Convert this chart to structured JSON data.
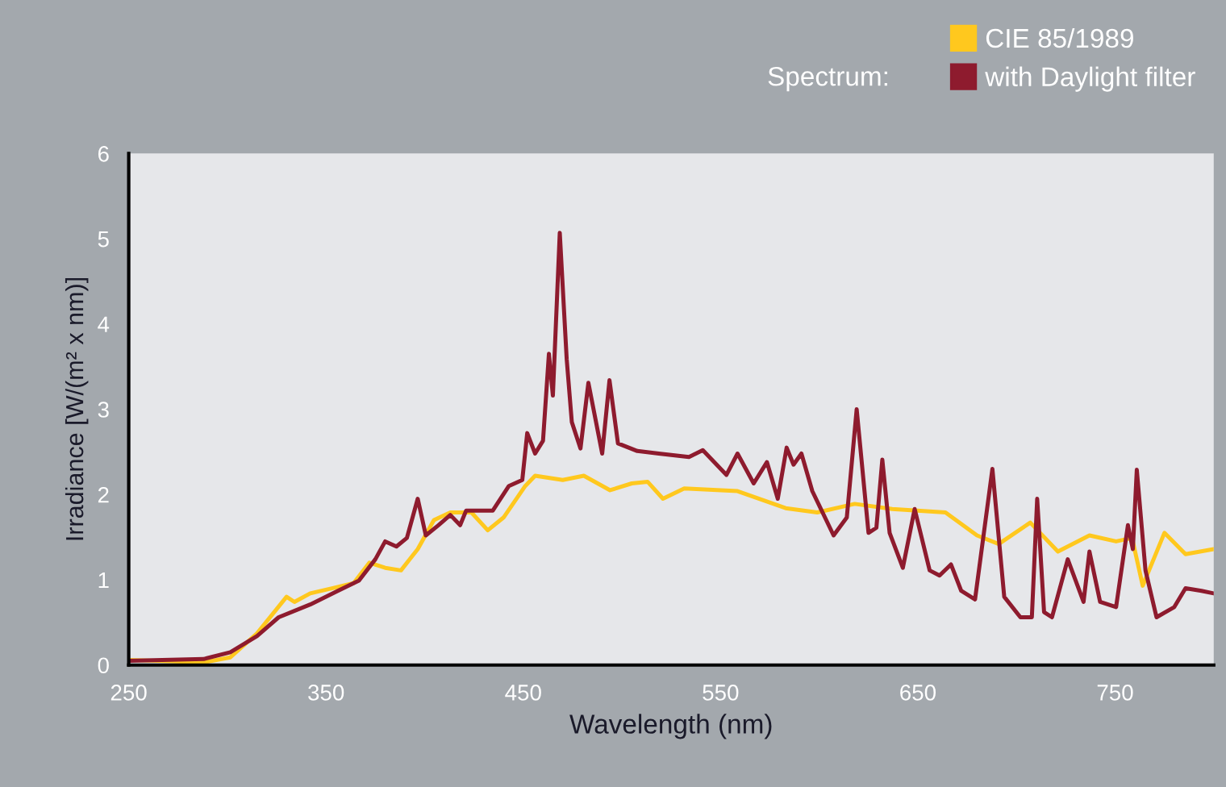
{
  "chart_data": {
    "type": "line",
    "xlabel": "Wavelength (nm)",
    "ylabel": "Irradiance [W/(m² x nm)]",
    "legend_title": "Spectrum:",
    "legend": "top right",
    "grid": false,
    "marker": "none",
    "line_style": "solid",
    "xlim": [
      250,
      800
    ],
    "xticks": [
      250,
      350,
      450,
      550,
      650,
      750
    ],
    "ylim": [
      0,
      6
    ],
    "yticks": [
      0,
      1,
      2,
      3,
      4,
      5,
      6
    ],
    "series": [
      {
        "name": "CIE 85/1989",
        "color": "#ffc81e",
        "x": [
          250,
          288,
          301.5,
          315,
          330,
          334,
          342,
          353,
          364,
          372,
          380,
          388,
          396.5,
          404.7,
          413,
          423.7,
          432,
          440,
          451,
          456,
          470,
          480.7,
          494,
          505,
          513,
          520.8,
          531.6,
          558.6,
          583,
          599,
          618,
          637,
          664,
          680,
          691,
          707,
          721,
          737,
          750.5,
          758.6,
          764,
          775,
          785.7,
          800
        ],
        "values": [
          0.06,
          0.03,
          0.09,
          0.37,
          0.8,
          0.74,
          0.84,
          0.9,
          0.96,
          1.2,
          1.14,
          1.11,
          1.36,
          1.7,
          1.79,
          1.79,
          1.58,
          1.73,
          2.1,
          2.22,
          2.17,
          2.22,
          2.05,
          2.13,
          2.15,
          1.95,
          2.07,
          2.04,
          1.84,
          1.79,
          1.89,
          1.83,
          1.79,
          1.52,
          1.42,
          1.67,
          1.33,
          1.52,
          1.45,
          1.49,
          0.93,
          1.55,
          1.3,
          1.36
        ]
      },
      {
        "name": "with Daylight filter",
        "color": "#8e1b2e",
        "x": [
          250,
          288,
          301.5,
          315,
          326,
          342,
          356,
          366.7,
          375,
          380,
          385.7,
          391,
          396.5,
          400.6,
          407,
          413,
          418,
          421,
          434.5,
          442.7,
          449.5,
          452,
          456,
          460,
          463,
          465,
          468.5,
          472,
          474.6,
          479,
          483,
          490,
          493.7,
          498,
          507.8,
          518.7,
          534,
          541,
          553,
          558.6,
          566.8,
          573.5,
          579,
          583.5,
          587,
          591,
          596.5,
          607.3,
          614,
          619,
          625,
          629,
          632,
          635.7,
          642.4,
          648.4,
          656,
          661,
          666.8,
          672,
          679,
          687.8,
          693.8,
          702,
          707.8,
          710.5,
          714,
          718,
          726,
          734,
          737,
          742.4,
          750.5,
          756.5,
          759,
          761,
          765.4,
          771,
          780,
          785.7,
          793.8,
          800
        ],
        "values": [
          0.05,
          0.07,
          0.15,
          0.34,
          0.56,
          0.71,
          0.87,
          0.99,
          1.24,
          1.45,
          1.39,
          1.49,
          1.95,
          1.52,
          1.64,
          1.76,
          1.64,
          1.81,
          1.81,
          2.1,
          2.17,
          2.72,
          2.48,
          2.63,
          3.65,
          3.16,
          5.07,
          3.59,
          2.85,
          2.54,
          3.31,
          2.48,
          3.34,
          2.6,
          2.51,
          2.48,
          2.44,
          2.52,
          2.23,
          2.48,
          2.13,
          2.38,
          1.95,
          2.55,
          2.35,
          2.48,
          2.04,
          1.52,
          1.73,
          3.0,
          1.55,
          1.61,
          2.41,
          1.55,
          1.14,
          1.83,
          1.11,
          1.05,
          1.18,
          0.87,
          0.77,
          2.3,
          0.8,
          0.56,
          0.56,
          1.95,
          0.62,
          0.56,
          1.24,
          0.74,
          1.33,
          0.74,
          0.68,
          1.64,
          1.36,
          2.29,
          1.11,
          0.56,
          0.68,
          0.9,
          0.87,
          0.84
        ]
      }
    ]
  }
}
